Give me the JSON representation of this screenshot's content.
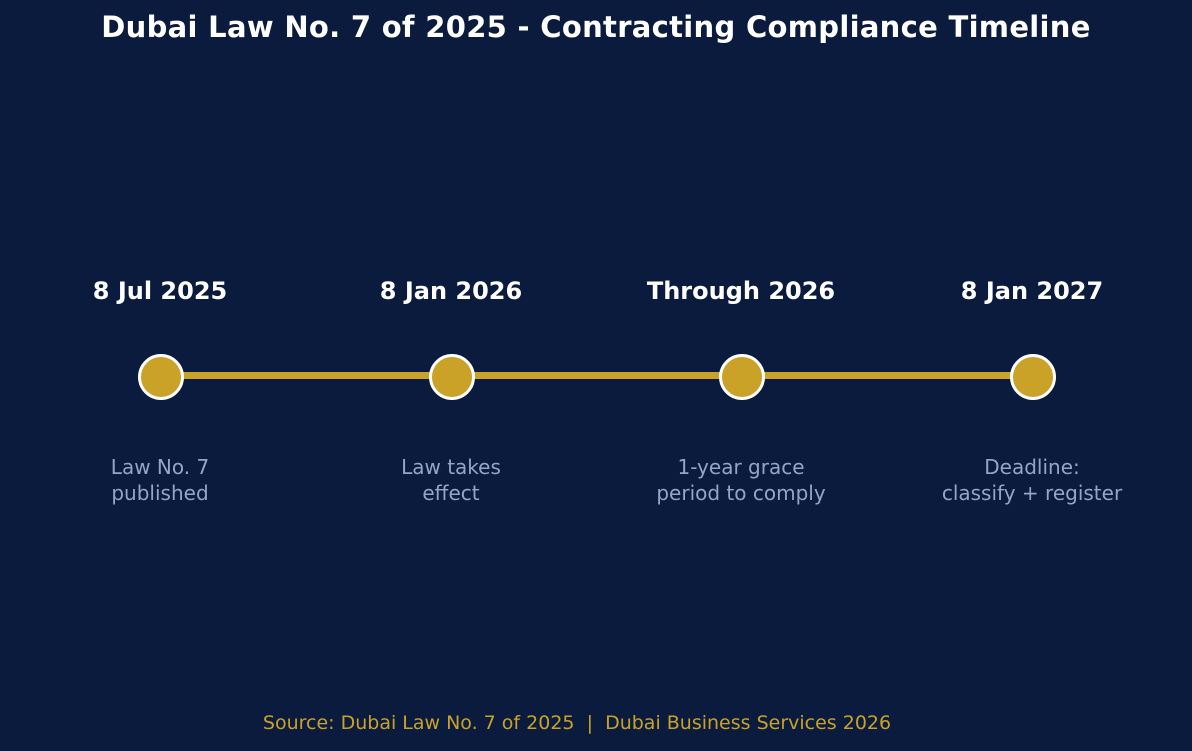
{
  "title": "Dubai Law No. 7 of 2025 - Contracting Compliance Timeline",
  "colors": {
    "background": "#0b1b3d",
    "accent": "#c9a227",
    "date_text": "#ffffff",
    "description_text": "#93a6c8"
  },
  "milestones": [
    {
      "date": "8 Jul 2025",
      "description": "Law No. 7\npublished"
    },
    {
      "date": "8 Jan 2026",
      "description": "Law takes\neffect"
    },
    {
      "date": "Through 2026",
      "description": "1-year grace\nperiod to comply"
    },
    {
      "date": "8 Jan 2027",
      "description": "Deadline:\nclassify + register"
    }
  ],
  "source": "Source: Dubai Law No. 7 of 2025  |  Dubai Business Services 2026"
}
